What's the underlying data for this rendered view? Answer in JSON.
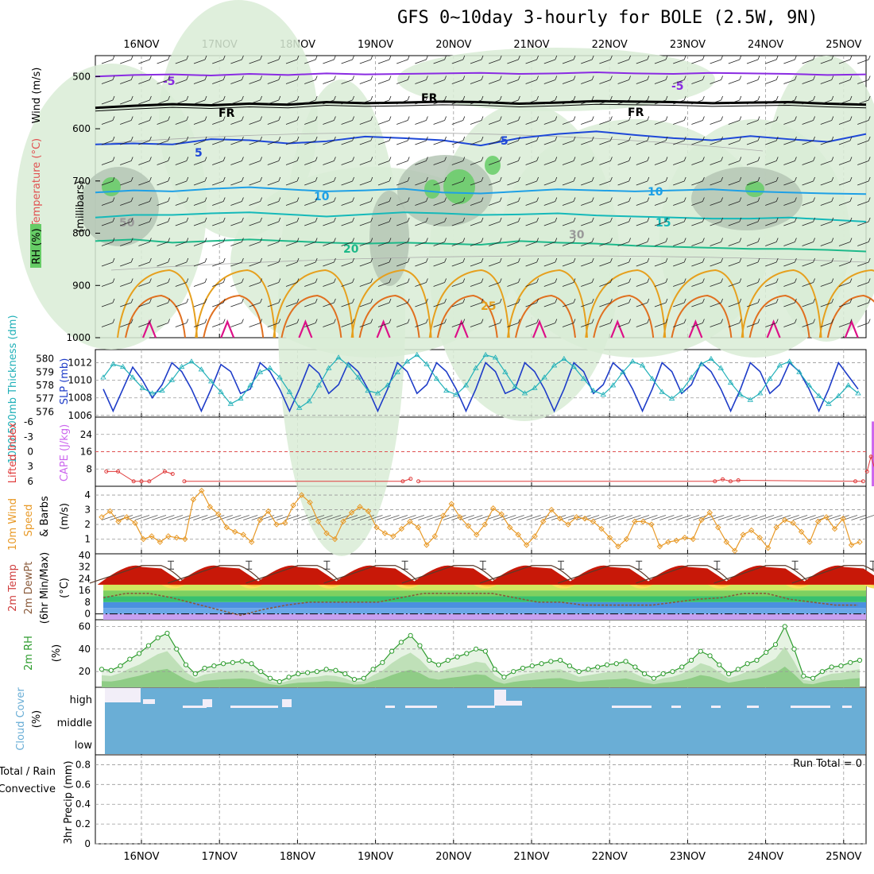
{
  "title": "GFS 0~10day 3-hourly for BOLE (2.5W, 9N)",
  "dates": [
    "16NOV",
    "17NOV",
    "18NOV",
    "19NOV",
    "20NOV",
    "21NOV",
    "22NOV",
    "23NOV",
    "24NOV",
    "25NOV"
  ],
  "colors": {
    "rh_fill": "#d9ecd6",
    "rh_dark": "#b5c5b5",
    "rh_green": "#66cc66",
    "t_minus5": "#8a2be2",
    "t_fr": "#000000",
    "t_5": "#1e48d8",
    "t_10": "#1ea0e6",
    "t_15": "#15b9b9",
    "t_20": "#1eb98a",
    "t_25": "#e6a01e",
    "t_30": "#e07020",
    "t_35": "#dd1088",
    "slp": "#1e3cc8",
    "thickness": "#20b0b8",
    "cape": "#cc66ee",
    "lifted": "#e03c3c",
    "wind": "#e89a28",
    "cloud": "#6aaed6",
    "rh2m": "#2e9c2e"
  },
  "chart_data": [
    {
      "panel": "cross-section",
      "type": "heatmap",
      "ylabel": "(millibars)",
      "legend_labels": [
        "RH (%)",
        "Temperature (°C)",
        "Wind (m/s)"
      ],
      "y_ticks": [
        "500",
        "600",
        "700",
        "800",
        "900",
        "1000"
      ],
      "ylim": [
        1000,
        460
      ],
      "contour_labels": {
        "minus5": "-5",
        "fr": "FR",
        "five": "5",
        "ten": "10",
        "fifteen": "15",
        "twenty": "20",
        "twentyfive": "25",
        "thirty": "30",
        "fifty": "50"
      },
      "isotherms": [
        {
          "label": "-5",
          "p": [
            500,
            497,
            496,
            498,
            495,
            497,
            494,
            496,
            495,
            494,
            493,
            495,
            494,
            492,
            494,
            495,
            493,
            494,
            495,
            497,
            496
          ]
        },
        {
          "label": "FR",
          "p": [
            560,
            556,
            553,
            555,
            552,
            554,
            549,
            551,
            550,
            548,
            549,
            552,
            550,
            547,
            548,
            549,
            551,
            550,
            549,
            552,
            554
          ]
        },
        {
          "label": "5",
          "p": [
            630,
            628,
            630,
            620,
            622,
            628,
            624,
            615,
            618,
            622,
            632,
            618,
            610,
            605,
            612,
            618,
            622,
            614,
            620,
            625,
            610
          ]
        },
        {
          "label": "10",
          "p": [
            722,
            718,
            720,
            715,
            712,
            716,
            720,
            718,
            715,
            722,
            724,
            720,
            716,
            718,
            720,
            718,
            716,
            720,
            722,
            724,
            725
          ]
        },
        {
          "label": "15",
          "p": [
            770,
            765,
            765,
            762,
            760,
            764,
            768,
            764,
            760,
            762,
            765,
            764,
            762,
            766,
            768,
            770,
            772,
            772,
            770,
            774,
            778
          ]
        },
        {
          "label": "20",
          "p": [
            815,
            812,
            818,
            815,
            812,
            815,
            818,
            820,
            818,
            820,
            822,
            815,
            818,
            820,
            824,
            826,
            828,
            830,
            830,
            832,
            835
          ]
        }
      ]
    },
    {
      "panel": "slp-thickness",
      "type": "line",
      "ylabel_left": "1000-500mb Thickness (dm)",
      "ylabel_right": "SLP (mb)",
      "left_ticks": [
        "580",
        "579",
        "578",
        "577",
        "576"
      ],
      "right_ticks": [
        "1012",
        "1010",
        "1008",
        "1006"
      ],
      "slp": [
        1009,
        1006.5,
        1009,
        1011.5,
        1010,
        1008,
        1009.5,
        1012,
        1011,
        1009,
        1006.5,
        1009,
        1011.8,
        1011,
        1008.5,
        1009,
        1012,
        1011,
        1009,
        1006.5,
        1009,
        1011.8,
        1010.8,
        1008.5,
        1009.5,
        1012,
        1011,
        1009,
        1006.5,
        1009,
        1012,
        1011,
        1008.5,
        1009.5,
        1012,
        1011,
        1009,
        1006.5,
        1009,
        1012,
        1011,
        1008.5,
        1009,
        1012,
        1011,
        1009,
        1006.5,
        1009,
        1012,
        1011,
        1008.5,
        1009.5,
        1012,
        1011,
        1009,
        1006.5,
        1009,
        1012,
        1011,
        1008.5,
        1009.5,
        1012,
        1011,
        1009,
        1006.5,
        1009,
        1012,
        1011,
        1008.5,
        1009.5,
        1012,
        1011,
        1009,
        1006.5,
        1009,
        1012,
        1010.5,
        1009
      ],
      "thickness": [
        578.6,
        579.6,
        579.4,
        578.6,
        577.8,
        577.4,
        577.6,
        578.4,
        579.4,
        579.8,
        579.2,
        578.3,
        577.5,
        576.6,
        577.0,
        578.0,
        579.0,
        579.3,
        578.6,
        577.5,
        576.3,
        576.8,
        578.0,
        579.3,
        580.1,
        579.5,
        578.6,
        577.6,
        577.4,
        578.0,
        579.0,
        579.8,
        580.3,
        579.6,
        578.5,
        577.6,
        577.3,
        578.0,
        579.3,
        580.3,
        580.1,
        579.0,
        577.9,
        577.4,
        577.8,
        578.6,
        579.5,
        580.0,
        579.4,
        578.5,
        577.6,
        577.3,
        578.0,
        579.0,
        579.8,
        579.5,
        578.5,
        577.5,
        577.0,
        577.6,
        578.6,
        579.6,
        580.0,
        579.3,
        578.2,
        577.3,
        576.9,
        577.4,
        578.5,
        579.5,
        579.8,
        579.0,
        578.0,
        577.2,
        576.6,
        577.2,
        578.0,
        577.4
      ]
    },
    {
      "panel": "cape-lifted",
      "type": "bar",
      "ylabel_left": "Lifted Index",
      "ylabel_right": "CAPE (J/kg)",
      "lifted_ticks": [
        "-6",
        "-3",
        "0",
        "3",
        "6"
      ],
      "cape_ticks": [
        "24",
        "16",
        "8"
      ],
      "cape_bar": {
        "day": 9.4,
        "value": 30
      },
      "lifted_points": [
        [
          -0.45,
          4
        ],
        [
          -0.3,
          4
        ],
        [
          -0.1,
          6
        ],
        [
          0.0,
          6
        ],
        [
          0.1,
          6
        ],
        [
          0.3,
          4
        ],
        [
          0.4,
          4.5
        ],
        [
          0.55,
          6
        ],
        [
          3.35,
          6
        ],
        [
          3.45,
          5.5
        ],
        [
          3.55,
          6
        ],
        [
          7.35,
          6
        ],
        [
          7.45,
          5.6
        ],
        [
          7.55,
          6
        ],
        [
          7.65,
          5.8
        ],
        [
          9.15,
          6
        ],
        [
          9.25,
          6
        ],
        [
          9.3,
          4
        ],
        [
          9.35,
          1
        ],
        [
          9.45,
          6
        ]
      ]
    },
    {
      "panel": "wind10m",
      "type": "line",
      "ylabel": "10m Wind Speed & Barbs (m/s)",
      "y_ticks": [
        "4",
        "3",
        "2",
        "1"
      ],
      "values": [
        2.5,
        2.9,
        2.2,
        2.5,
        2.1,
        1.0,
        1.2,
        0.8,
        1.2,
        1.1,
        1.0,
        3.7,
        4.3,
        3.2,
        2.7,
        1.8,
        1.5,
        1.3,
        0.8,
        2.3,
        2.9,
        2.0,
        2.1,
        3.3,
        4.0,
        3.5,
        2.2,
        1.4,
        1.0,
        2.2,
        2.8,
        3.2,
        2.9,
        1.8,
        1.4,
        1.2,
        1.7,
        2.2,
        1.8,
        0.6,
        1.2,
        2.6,
        3.4,
        2.5,
        1.9,
        1.3,
        2.0,
        3.1,
        2.7,
        1.8,
        1.3,
        0.6,
        1.2,
        2.2,
        3.0,
        2.4,
        2.0,
        2.5,
        2.4,
        2.2,
        1.7,
        1.1,
        0.5,
        1.0,
        2.2,
        2.2,
        2.0,
        0.5,
        0.8,
        0.9,
        1.1,
        1.0,
        2.3,
        2.8,
        1.8,
        0.8,
        0.2,
        1.3,
        1.6,
        1.1,
        0.4,
        1.8,
        2.3,
        2.1,
        1.5,
        0.8,
        2.2,
        2.5,
        1.7,
        2.4,
        0.6,
        0.8
      ]
    },
    {
      "panel": "temp2m",
      "type": "area",
      "ylabel": "2m Temp 2m DewPt (6hr Min/Max) (°C)",
      "y_ticks": [
        "40",
        "32",
        "24",
        "16",
        "8",
        "0"
      ],
      "temp_peaks": [
        33,
        33,
        33,
        33,
        33,
        33,
        33,
        33,
        33,
        33
      ],
      "temp_mins": [
        21,
        21,
        21,
        21,
        21,
        21,
        21,
        21,
        21,
        21
      ],
      "dewpoint": [
        11,
        14,
        14,
        11,
        7,
        3,
        -1,
        3,
        6,
        8,
        8,
        8,
        8,
        11,
        14,
        14,
        14,
        14,
        11,
        8,
        8,
        6,
        6,
        6,
        6,
        8,
        10,
        11,
        14,
        14,
        10,
        8,
        6,
        6
      ]
    },
    {
      "panel": "rh2m",
      "type": "area",
      "ylabel": "2m RH (%)",
      "y_ticks": [
        "60",
        "40",
        "20"
      ],
      "values": [
        22,
        21,
        25,
        31,
        36,
        43,
        50,
        54,
        40,
        26,
        18,
        23,
        25,
        27,
        28,
        29,
        27,
        20,
        14,
        11,
        15,
        18,
        19,
        20,
        22,
        21,
        18,
        13,
        14,
        22,
        28,
        38,
        46,
        52,
        43,
        30,
        26,
        30,
        33,
        36,
        40,
        38,
        22,
        15,
        20,
        23,
        25,
        27,
        29,
        30,
        25,
        20,
        22,
        24,
        26,
        27,
        29,
        24,
        18,
        14,
        18,
        20,
        24,
        30,
        38,
        34,
        26,
        18,
        22,
        27,
        30,
        37,
        44,
        60,
        40,
        16,
        14,
        20,
        24,
        25,
        28,
        30
      ]
    },
    {
      "panel": "cloud",
      "type": "bar",
      "ylabel": "Cloud Cover (%)",
      "levels": [
        "high",
        "middle",
        "low"
      ]
    },
    {
      "panel": "precip",
      "type": "bar",
      "ylabel": "3hr Precip (mm)",
      "legend_total": "Total / Rain",
      "legend_conv": "Convective",
      "y_ticks": [
        "0.8",
        "0.6",
        "0.4",
        "0.2",
        "0"
      ],
      "ylim": [
        0,
        0.9
      ],
      "run_total_label": "Run Total = 0",
      "values": []
    }
  ],
  "axis_ticks": [
    "500",
    "600",
    "700",
    "800",
    "900",
    "1000"
  ]
}
